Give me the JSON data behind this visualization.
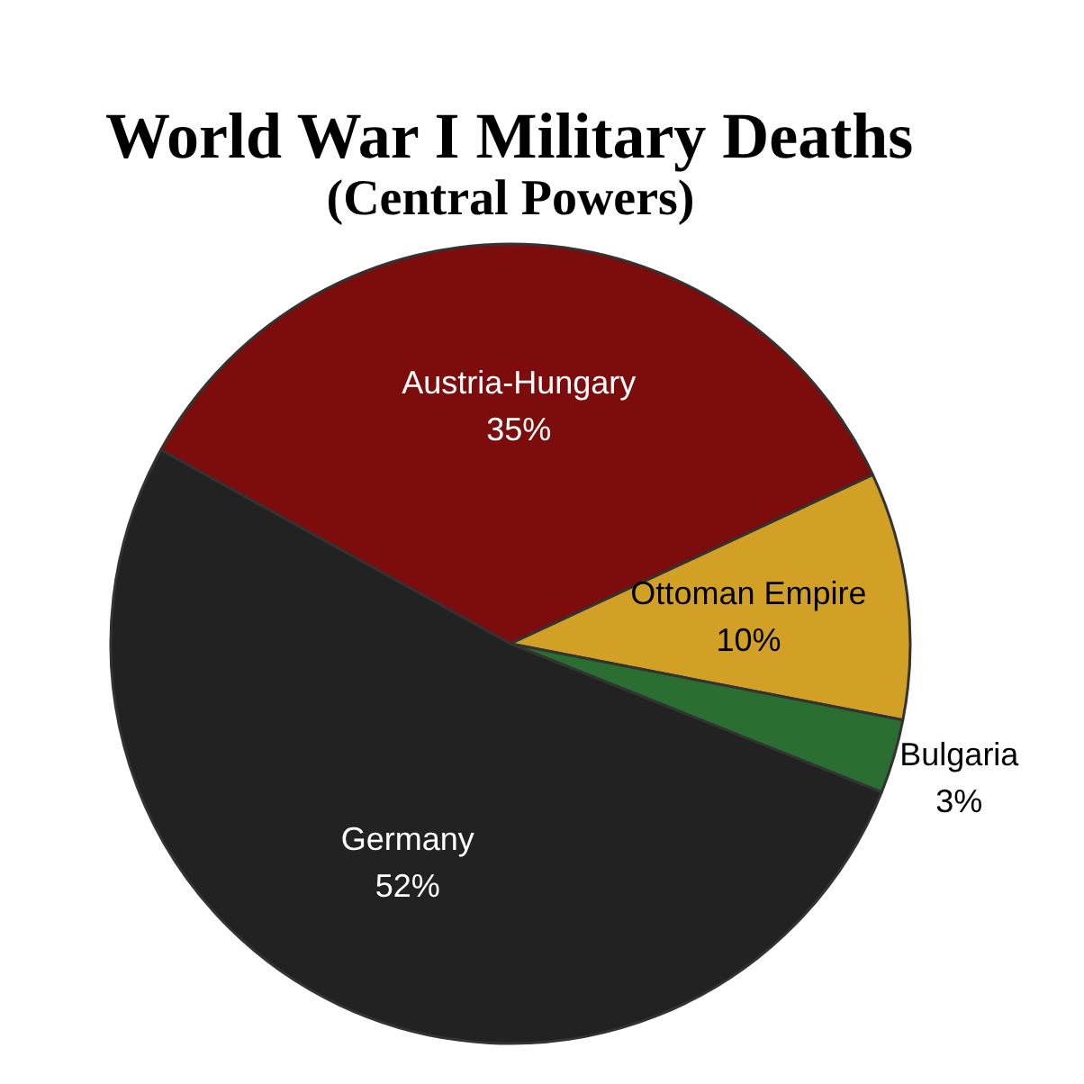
{
  "chart_data": {
    "type": "pie",
    "title": "World War I Military Deaths",
    "subtitle": "(Central Powers)",
    "categories": [
      "Austria-Hungary",
      "Ottoman Empire",
      "Bulgaria",
      "Germany"
    ],
    "values": [
      35,
      10,
      3,
      52
    ],
    "colors": [
      "#7d0c0c",
      "#d2a024",
      "#2a6e32",
      "#222222"
    ],
    "value_labels": [
      "35%",
      "10%",
      "3%",
      "52%"
    ]
  }
}
